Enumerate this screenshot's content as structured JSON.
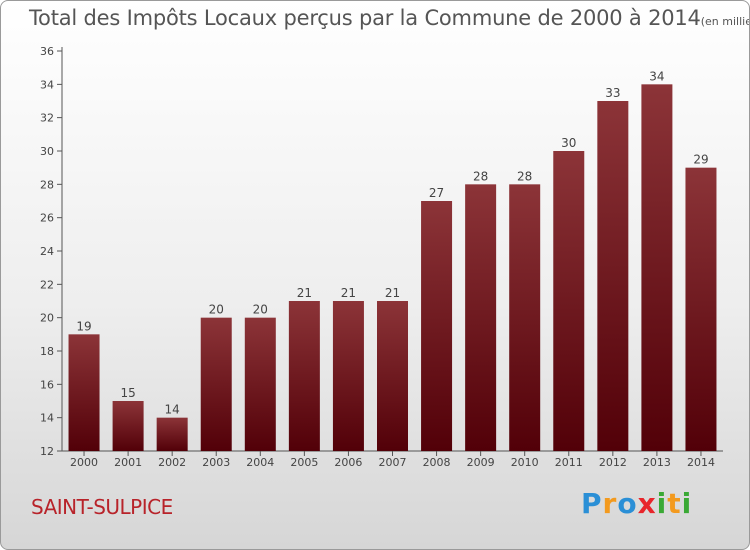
{
  "title": "Total des Impôts Locaux perçus par la Commune de 2000 à 2014",
  "unit": "(en milliers d'€)",
  "commune": "SAINT-SULPICE",
  "logo_letters": [
    {
      "ch": "P",
      "color": "#2a8fd6"
    },
    {
      "ch": "r",
      "color": "#f39a1e"
    },
    {
      "ch": "o",
      "color": "#2a8fd6"
    },
    {
      "ch": "x",
      "color": "#e8252b"
    },
    {
      "ch": "i",
      "color": "#3aa935"
    },
    {
      "ch": "t",
      "color": "#f39a1e"
    },
    {
      "ch": "i",
      "color": "#3aa935"
    }
  ],
  "chart_data": {
    "type": "bar",
    "title": "Total des Impôts Locaux perçus par la Commune de 2000 à 2014",
    "categories": [
      "2000",
      "2001",
      "2002",
      "2003",
      "2004",
      "2005",
      "2006",
      "2007",
      "2008",
      "2009",
      "2010",
      "2011",
      "2012",
      "2013",
      "2014"
    ],
    "values": [
      19,
      15,
      14,
      20,
      20,
      21,
      21,
      21,
      27,
      28,
      28,
      30,
      33,
      34,
      29
    ],
    "ylim": [
      12,
      36
    ],
    "yticks": [
      12,
      14,
      16,
      18,
      20,
      22,
      24,
      26,
      28,
      30,
      32,
      34,
      36
    ],
    "grid": false,
    "bar_color": "#6e0f14",
    "data_labels": true
  }
}
